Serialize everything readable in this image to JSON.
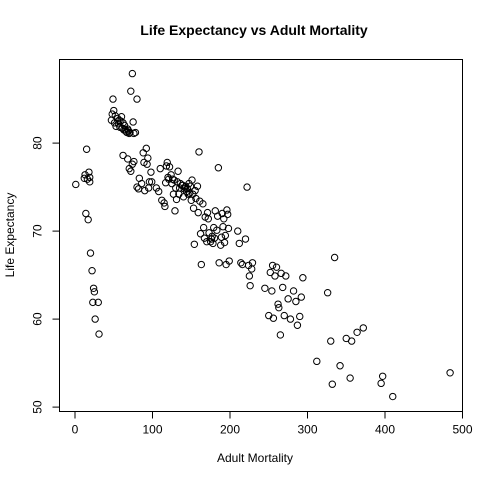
{
  "chart_data": {
    "type": "scatter",
    "title": "Life Expectancy vs  Adult Mortality",
    "xlabel": "Adult Mortality",
    "ylabel": "Life Expectancy",
    "xlim": [
      -20,
      500
    ],
    "ylim": [
      49.5,
      89.5
    ],
    "xticks": [
      0,
      100,
      200,
      300,
      400,
      500
    ],
    "yticks": [
      50,
      60,
      70,
      80
    ],
    "grid": false,
    "legend": "none",
    "points": [
      [
        1,
        75.3
      ],
      [
        12,
        76
      ],
      [
        13,
        76.4
      ],
      [
        14,
        72
      ],
      [
        15,
        79.3
      ],
      [
        16,
        75.9
      ],
      [
        17,
        71.3
      ],
      [
        18,
        76.7
      ],
      [
        19,
        76.1
      ],
      [
        19,
        75.6
      ],
      [
        20,
        67.5
      ],
      [
        22,
        65.5
      ],
      [
        23,
        61.9
      ],
      [
        24,
        63.5
      ],
      [
        25,
        63.1
      ],
      [
        26,
        60
      ],
      [
        30,
        61.9
      ],
      [
        31,
        58.3
      ],
      [
        47,
        82.6
      ],
      [
        48,
        83.3
      ],
      [
        49,
        85
      ],
      [
        50,
        83.7
      ],
      [
        51,
        82.3
      ],
      [
        52,
        83.1
      ],
      [
        53,
        81.9
      ],
      [
        55,
        82.8
      ],
      [
        56,
        82.2
      ],
      [
        57,
        82.6
      ],
      [
        58,
        81.8
      ],
      [
        59,
        82.5
      ],
      [
        60,
        83
      ],
      [
        61,
        81.7
      ],
      [
        62,
        82.3
      ],
      [
        63,
        81.5
      ],
      [
        64,
        82
      ],
      [
        65,
        81.5
      ],
      [
        66,
        81.3
      ],
      [
        67,
        81.2
      ],
      [
        68,
        81.6
      ],
      [
        69,
        81.4
      ],
      [
        70,
        81.1
      ],
      [
        71,
        81.2
      ],
      [
        72,
        85.9
      ],
      [
        74,
        87.9
      ],
      [
        75,
        82.4
      ],
      [
        76,
        81.1
      ],
      [
        78,
        81.2
      ],
      [
        80,
        85
      ],
      [
        62,
        78.6
      ],
      [
        68,
        78.2
      ],
      [
        70,
        77.1
      ],
      [
        72,
        76.8
      ],
      [
        74,
        77.6
      ],
      [
        76,
        77.9
      ],
      [
        80,
        75
      ],
      [
        82,
        74.8
      ],
      [
        83,
        76
      ],
      [
        86,
        75.4
      ],
      [
        88,
        78.9
      ],
      [
        89,
        77.8
      ],
      [
        90,
        74.6
      ],
      [
        92,
        79.4
      ],
      [
        93,
        77.6
      ],
      [
        94,
        78.3
      ],
      [
        95,
        74.9
      ],
      [
        96,
        75.6
      ],
      [
        98,
        76.7
      ],
      [
        99,
        75.6
      ],
      [
        105,
        74.9
      ],
      [
        108,
        74.5
      ],
      [
        110,
        77.1
      ],
      [
        112,
        73.5
      ],
      [
        115,
        73.2
      ],
      [
        116,
        72.8
      ],
      [
        117,
        75.5
      ],
      [
        118,
        77.4
      ],
      [
        119,
        77.8
      ],
      [
        120,
        76.1
      ],
      [
        121,
        75.9
      ],
      [
        122,
        77.3
      ],
      [
        124,
        76.4
      ],
      [
        125,
        75.4
      ],
      [
        126,
        75.9
      ],
      [
        127,
        74.2
      ],
      [
        128,
        75.8
      ],
      [
        129,
        72.3
      ],
      [
        130,
        74.9
      ],
      [
        131,
        73.6
      ],
      [
        132,
        75.6
      ],
      [
        133,
        76.8
      ],
      [
        134,
        74.2
      ],
      [
        135,
        74.9
      ],
      [
        136,
        75.4
      ],
      [
        138,
        75.2
      ],
      [
        139,
        75.2
      ],
      [
        140,
        73.9
      ],
      [
        141,
        74.8
      ],
      [
        142,
        75
      ],
      [
        143,
        75.1
      ],
      [
        144,
        74.5
      ],
      [
        145,
        74.8
      ],
      [
        146,
        74.2
      ],
      [
        147,
        75.4
      ],
      [
        148,
        74.3
      ],
      [
        149,
        75.1
      ],
      [
        150,
        73.5
      ],
      [
        151,
        75.8
      ],
      [
        152,
        74.2
      ],
      [
        153,
        72.6
      ],
      [
        154,
        68.5
      ],
      [
        155,
        74.6
      ],
      [
        156,
        73.7
      ],
      [
        158,
        75.1
      ],
      [
        159,
        72.1
      ],
      [
        160,
        79
      ],
      [
        161,
        73.4
      ],
      [
        162,
        69.7
      ],
      [
        163,
        66.2
      ],
      [
        165,
        73.1
      ],
      [
        166,
        70.4
      ],
      [
        167,
        69.2
      ],
      [
        168,
        71.6
      ],
      [
        170,
        68.8
      ],
      [
        171,
        72.1
      ],
      [
        172,
        71.4
      ],
      [
        173,
        69.8
      ],
      [
        175,
        68.8
      ],
      [
        176,
        69.1
      ],
      [
        177,
        69.4
      ],
      [
        178,
        68.6
      ],
      [
        179,
        70.4
      ],
      [
        180,
        69.2
      ],
      [
        181,
        72.3
      ],
      [
        183,
        70.1
      ],
      [
        184,
        71.7
      ],
      [
        185,
        77.2
      ],
      [
        186,
        66.4
      ],
      [
        188,
        68.4
      ],
      [
        189,
        69.3
      ],
      [
        190,
        72
      ],
      [
        191,
        70.5
      ],
      [
        192,
        71.4
      ],
      [
        193,
        68.7
      ],
      [
        194,
        69.5
      ],
      [
        195,
        66.2
      ],
      [
        196,
        72.4
      ],
      [
        197,
        71.9
      ],
      [
        198,
        70.3
      ],
      [
        199,
        66.6
      ],
      [
        210,
        70
      ],
      [
        212,
        68.6
      ],
      [
        214,
        66.4
      ],
      [
        216,
        66.2
      ],
      [
        220,
        69.1
      ],
      [
        222,
        75
      ],
      [
        224,
        66.1
      ],
      [
        225,
        64.9
      ],
      [
        226,
        63.8
      ],
      [
        228,
        65.7
      ],
      [
        229,
        66.4
      ],
      [
        245,
        63.5
      ],
      [
        250,
        60.4
      ],
      [
        252,
        65.3
      ],
      [
        254,
        63.2
      ],
      [
        255,
        66.1
      ],
      [
        256,
        60.1
      ],
      [
        258,
        64.9
      ],
      [
        260,
        65.9
      ],
      [
        262,
        61.7
      ],
      [
        263,
        61.3
      ],
      [
        265,
        58.2
      ],
      [
        266,
        65.2
      ],
      [
        268,
        63.6
      ],
      [
        270,
        60.4
      ],
      [
        272,
        64.9
      ],
      [
        275,
        62.3
      ],
      [
        278,
        60
      ],
      [
        282,
        63.2
      ],
      [
        285,
        62
      ],
      [
        287,
        59.3
      ],
      [
        290,
        60.3
      ],
      [
        292,
        62.5
      ],
      [
        294,
        64.7
      ],
      [
        312,
        55.2
      ],
      [
        326,
        63
      ],
      [
        330,
        57.5
      ],
      [
        332,
        52.6
      ],
      [
        335,
        67
      ],
      [
        342,
        54.7
      ],
      [
        350,
        57.8
      ],
      [
        355,
        53.3
      ],
      [
        357,
        57.5
      ],
      [
        364,
        58.5
      ],
      [
        372,
        59
      ],
      [
        395,
        52.7
      ],
      [
        397,
        53.5
      ],
      [
        410,
        51.2
      ],
      [
        484,
        53.9
      ]
    ]
  }
}
